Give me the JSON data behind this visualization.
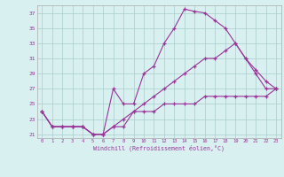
{
  "xlabel": "Windchill (Refroidissement éolien,°C)",
  "background_color": "#d8f0f0",
  "line_color": "#993399",
  "grid_color": "#aacccc",
  "spine_color": "#aaaaaa",
  "xmin": -0.5,
  "xmax": 23.5,
  "ymin": 20.5,
  "ymax": 38,
  "yticks": [
    21,
    23,
    25,
    27,
    29,
    31,
    33,
    35,
    37
  ],
  "xticks": [
    0,
    1,
    2,
    3,
    4,
    5,
    6,
    7,
    8,
    9,
    10,
    11,
    12,
    13,
    14,
    15,
    16,
    17,
    18,
    19,
    20,
    21,
    22,
    23
  ],
  "series": [
    [
      24,
      22,
      22,
      22,
      22,
      21,
      21,
      27,
      25,
      25,
      29,
      30,
      33,
      35,
      37.5,
      37.2,
      37,
      36,
      35,
      33,
      31,
      29,
      27,
      27
    ],
    [
      24,
      22,
      22,
      22,
      22,
      21,
      21,
      22,
      22,
      24,
      25,
      26,
      27,
      28,
      29,
      30,
      31,
      31,
      32,
      33,
      31,
      29.5,
      28,
      27
    ],
    [
      24,
      22,
      22,
      22,
      22,
      21,
      21,
      22,
      23,
      24,
      24,
      24,
      25,
      25,
      25,
      25,
      26,
      26,
      26,
      26,
      26,
      26,
      26,
      27
    ]
  ]
}
